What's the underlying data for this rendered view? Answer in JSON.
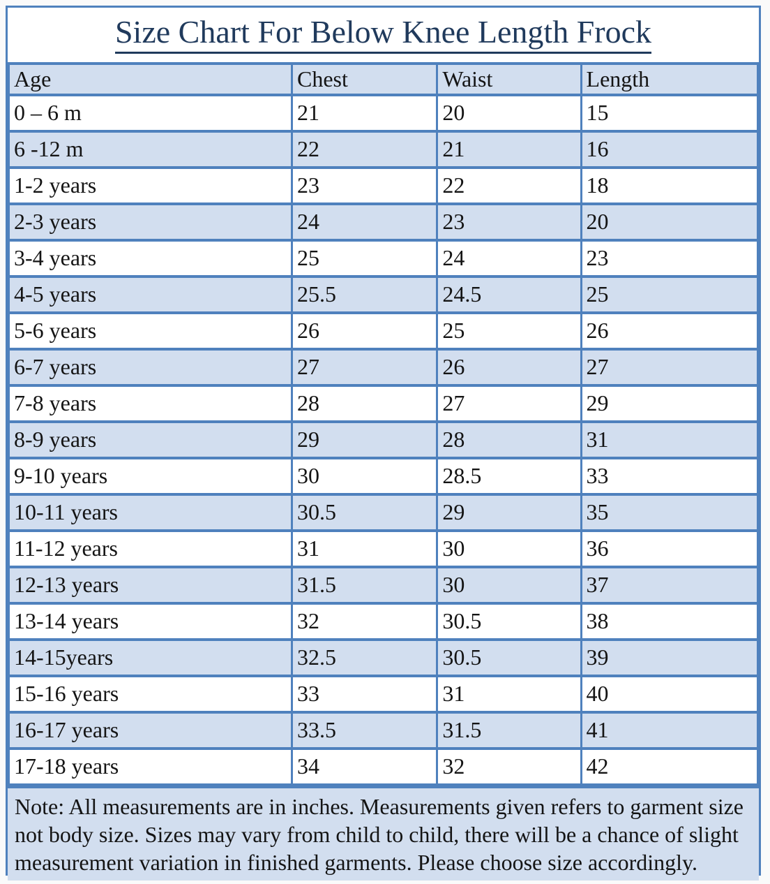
{
  "title": "Size Chart For Below Knee Length Frock",
  "table": {
    "columns": [
      "Age",
      "Chest",
      "Waist",
      "Length"
    ],
    "rows": [
      [
        "0 – 6 m",
        "21",
        "20",
        "15"
      ],
      [
        "6 -12 m",
        "22",
        "21",
        "16"
      ],
      [
        "1-2 years",
        "23",
        "22",
        "18"
      ],
      [
        "2-3 years",
        "24",
        "23",
        "20"
      ],
      [
        "3-4 years",
        "25",
        "24",
        "23"
      ],
      [
        "4-5 years",
        "25.5",
        "24.5",
        "25"
      ],
      [
        "5-6 years",
        "26",
        "25",
        "26"
      ],
      [
        "6-7 years",
        "27",
        "26",
        "27"
      ],
      [
        "7-8 years",
        "28",
        "27",
        "29"
      ],
      [
        "8-9 years",
        "29",
        "28",
        "31"
      ],
      [
        "9-10 years",
        "30",
        "28.5",
        "33"
      ],
      [
        "10-11 years",
        "30.5",
        "29",
        "35"
      ],
      [
        "11-12 years",
        "31",
        "30",
        "36"
      ],
      [
        "12-13 years",
        "31.5",
        "30",
        "37"
      ],
      [
        "13-14 years",
        "32",
        "30.5",
        "38"
      ],
      [
        "14-15years",
        "32.5",
        "30.5",
        "39"
      ],
      [
        "15-16 years",
        "33",
        "31",
        "40"
      ],
      [
        "16-17 years",
        "33.5",
        "31.5",
        "41"
      ],
      [
        "17-18 years",
        "34",
        "32",
        "42"
      ]
    ]
  },
  "note": "Note: All measurements are in inches. Measurements given refers to garment size not body size. Sizes may vary from child to child, there will be a chance of slight measurement variation in finished garments. Please choose size accordingly.",
  "colors": {
    "border": "#4f81bd",
    "row_shade": "#d2deef",
    "title_text": "#203a5c",
    "body_text": "#141414"
  },
  "chart_data": {
    "type": "table",
    "title": "Size Chart For Below Knee Length Frock",
    "columns": [
      "Age",
      "Chest",
      "Waist",
      "Length"
    ],
    "units": "inches",
    "rows": [
      {
        "age": "0 – 6 m",
        "chest": 21,
        "waist": 20,
        "length": 15
      },
      {
        "age": "6 -12 m",
        "chest": 22,
        "waist": 21,
        "length": 16
      },
      {
        "age": "1-2 years",
        "chest": 23,
        "waist": 22,
        "length": 18
      },
      {
        "age": "2-3 years",
        "chest": 24,
        "waist": 23,
        "length": 20
      },
      {
        "age": "3-4 years",
        "chest": 25,
        "waist": 24,
        "length": 23
      },
      {
        "age": "4-5 years",
        "chest": 25.5,
        "waist": 24.5,
        "length": 25
      },
      {
        "age": "5-6 years",
        "chest": 26,
        "waist": 25,
        "length": 26
      },
      {
        "age": "6-7 years",
        "chest": 27,
        "waist": 26,
        "length": 27
      },
      {
        "age": "7-8 years",
        "chest": 28,
        "waist": 27,
        "length": 29
      },
      {
        "age": "8-9 years",
        "chest": 29,
        "waist": 28,
        "length": 31
      },
      {
        "age": "9-10 years",
        "chest": 30,
        "waist": 28.5,
        "length": 33
      },
      {
        "age": "10-11 years",
        "chest": 30.5,
        "waist": 29,
        "length": 35
      },
      {
        "age": "11-12 years",
        "chest": 31,
        "waist": 30,
        "length": 36
      },
      {
        "age": "12-13 years",
        "chest": 31.5,
        "waist": 30,
        "length": 37
      },
      {
        "age": "13-14 years",
        "chest": 32,
        "waist": 30.5,
        "length": 38
      },
      {
        "age": "14-15years",
        "chest": 32.5,
        "waist": 30.5,
        "length": 39
      },
      {
        "age": "15-16 years",
        "chest": 33,
        "waist": 31,
        "length": 40
      },
      {
        "age": "16-17 years",
        "chest": 33.5,
        "waist": 31.5,
        "length": 41
      },
      {
        "age": "17-18 years",
        "chest": 34,
        "waist": 32,
        "length": 42
      }
    ]
  }
}
